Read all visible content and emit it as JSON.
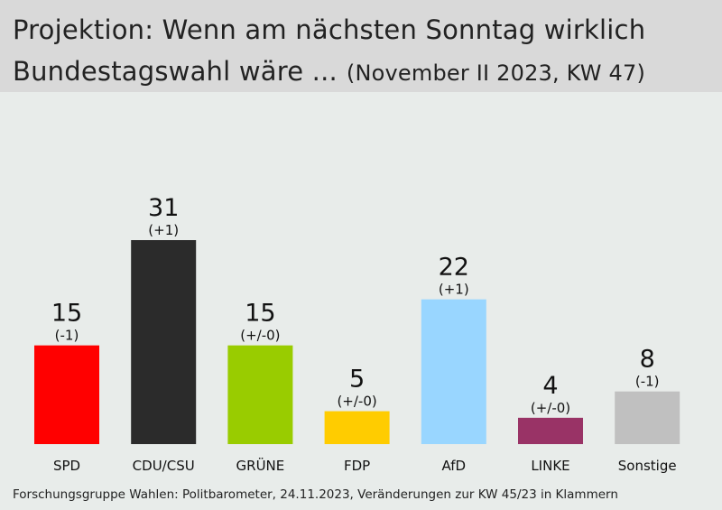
{
  "header": {
    "title_line1": "Projektion: Wenn am nächsten Sonntag wirklich",
    "title_line2": "Bundestagswahl wäre ...",
    "subtitle": "(November II 2023, KW 47)"
  },
  "source": "Forschungsgruppe Wahlen: Politbarometer, 24.11.2023, Veränderungen zur KW 45/23 in Klammern",
  "chart_data": {
    "type": "bar",
    "title": "Projektion: Wenn am nächsten Sonntag wirklich Bundestagswahl wäre ...",
    "subtitle": "(November II 2023, KW 47)",
    "categories": [
      "SPD",
      "CDU/CSU",
      "GRÜNE",
      "FDP",
      "AfD",
      "LINKE",
      "Sonstige"
    ],
    "values": [
      15,
      31,
      15,
      5,
      22,
      4,
      8
    ],
    "changes": [
      "(-1)",
      "(+1)",
      "(+/-0)",
      "(+/-0)",
      "(+1)",
      "(+/-0)",
      "(-1)"
    ],
    "colors": [
      "#ff0000",
      "#2b2b2b",
      "#99cc00",
      "#ffcc00",
      "#99d6ff",
      "#993366",
      "#c0c0c0"
    ],
    "ylim": [
      0,
      31
    ],
    "grid": false,
    "legend": "none"
  }
}
